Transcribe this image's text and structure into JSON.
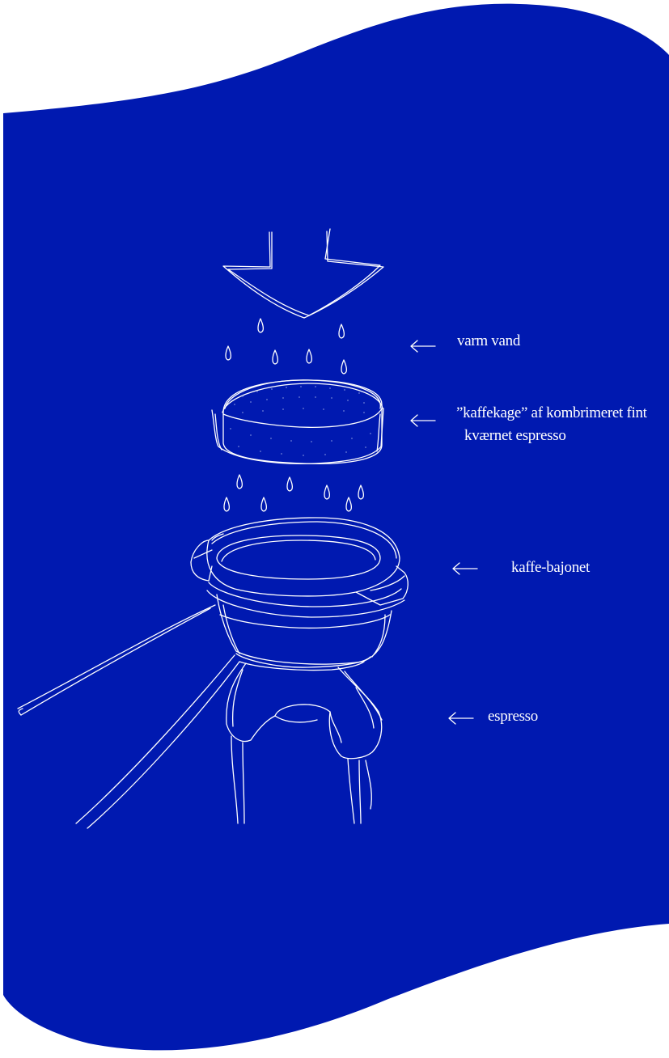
{
  "colors": {
    "background": "#0019b0",
    "ink": "#ffffff",
    "page": "#ffffff"
  },
  "labels": {
    "hot_water": "varm vand",
    "coffee_cake_line1": "”kaffekage” af kombrimeret fint",
    "coffee_cake_line2": "kværnet espresso",
    "portafilter": "kaffe-bajonet",
    "espresso": "espresso"
  },
  "icons": [
    "arrow-left-icon",
    "water-drop-icon",
    "down-arrow-icon"
  ]
}
